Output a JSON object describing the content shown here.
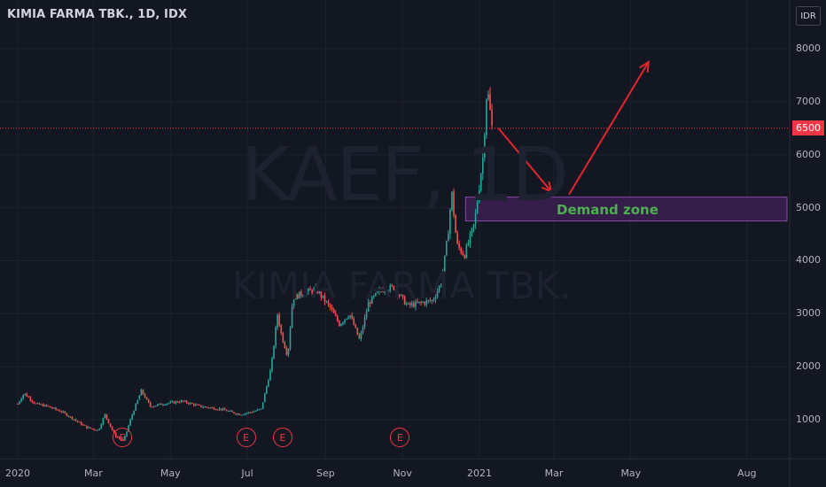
{
  "header": {
    "symbol": "KIMIA FARMA TBK., 1D, IDX",
    "currency": "IDR"
  },
  "watermark": {
    "ticker": "KAEF, 1D",
    "name": "KIMIA FARMA TBK."
  },
  "annotations": {
    "demand_zone_label": "Demand zone",
    "earnings_marker": "E"
  },
  "colors": {
    "background": "#131722",
    "up": "#26a69a",
    "down": "#ef5350",
    "arrow": "#e3262e",
    "zone_fill": "#3b1f4f",
    "zone_border": "#8e44ad",
    "zone_text": "#4caf50",
    "grid": "#1e222d"
  },
  "chart_data": {
    "type": "candlestick",
    "title": "KIMIA FARMA TBK., 1D, IDX",
    "y_axis": {
      "ticks": [
        1000,
        2000,
        3000,
        4000,
        5000,
        6000,
        7000,
        8000
      ],
      "unit": "IDR",
      "range": [
        230,
        8600
      ]
    },
    "x_axis": {
      "ticks": [
        "2020",
        "Mar",
        "May",
        "Jul",
        "Sep",
        "Nov",
        "2021",
        "Mar",
        "May",
        "Aug"
      ]
    },
    "last_price": "6500",
    "demand_zone": {
      "low": 4750,
      "high": 5200,
      "start": "2020-12-21",
      "end": "2021-08-31"
    },
    "earnings": [
      "2020-03-24",
      "2020-06-30",
      "2020-07-29",
      "2020-10-30"
    ],
    "price_path": [
      [
        "2020-01-01",
        1300
      ],
      [
        "2020-01-06",
        1500
      ],
      [
        "2020-01-15",
        1300
      ],
      [
        "2020-01-25",
        1250
      ],
      [
        "2020-02-05",
        1150
      ],
      [
        "2020-02-15",
        1000
      ],
      [
        "2020-02-25",
        850
      ],
      [
        "2020-03-05",
        800
      ],
      [
        "2020-03-10",
        1100
      ],
      [
        "2020-03-18",
        700
      ],
      [
        "2020-03-25",
        600
      ],
      [
        "2020-03-31",
        1050
      ],
      [
        "2020-04-08",
        1550
      ],
      [
        "2020-04-15",
        1250
      ],
      [
        "2020-04-25",
        1300
      ],
      [
        "2020-05-10",
        1350
      ],
      [
        "2020-05-25",
        1250
      ],
      [
        "2020-06-10",
        1200
      ],
      [
        "2020-06-25",
        1100
      ],
      [
        "2020-07-05",
        1150
      ],
      [
        "2020-07-12",
        1200
      ],
      [
        "2020-07-20",
        2000
      ],
      [
        "2020-07-25",
        3000
      ],
      [
        "2020-07-28",
        2600
      ],
      [
        "2020-08-02",
        2200
      ],
      [
        "2020-08-06",
        3300
      ],
      [
        "2020-08-15",
        3400
      ],
      [
        "2020-08-25",
        3450
      ],
      [
        "2020-09-05",
        3100
      ],
      [
        "2020-09-12",
        2800
      ],
      [
        "2020-09-20",
        3000
      ],
      [
        "2020-09-28",
        2500
      ],
      [
        "2020-10-05",
        3200
      ],
      [
        "2020-10-15",
        3450
      ],
      [
        "2020-10-25",
        3500
      ],
      [
        "2020-11-05",
        3150
      ],
      [
        "2020-11-15",
        3200
      ],
      [
        "2020-11-25",
        3250
      ],
      [
        "2020-12-02",
        3600
      ],
      [
        "2020-12-07",
        4500
      ],
      [
        "2020-12-10",
        5300
      ],
      [
        "2020-12-14",
        4300
      ],
      [
        "2020-12-20",
        4100
      ],
      [
        "2020-12-28",
        4700
      ],
      [
        "2021-01-04",
        6000
      ],
      [
        "2021-01-07",
        7300
      ],
      [
        "2021-01-11",
        6500
      ]
    ],
    "arrows": [
      {
        "from": [
          "2021-01-16",
          6500
        ],
        "to": [
          "2021-02-27",
          5300
        ]
      },
      {
        "from": [
          "2021-03-13",
          5250
        ],
        "to": [
          "2021-05-15",
          7750
        ]
      }
    ]
  }
}
